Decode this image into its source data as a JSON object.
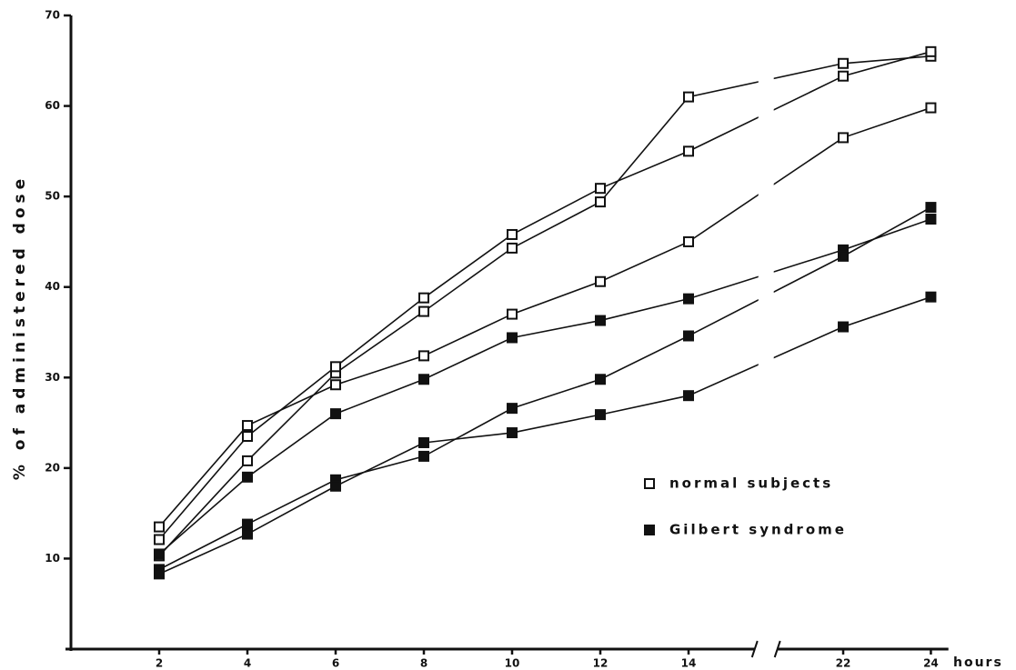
{
  "chart_data": {
    "type": "line",
    "y_label": "% of administered dose",
    "x_label": "hours",
    "xlim": [
      0,
      24.4
    ],
    "x_break": [
      15.5,
      20.5
    ],
    "xticks": [
      2,
      4,
      6,
      8,
      10,
      12,
      14,
      22,
      24
    ],
    "ylim": [
      0,
      70
    ],
    "yticks": [
      10,
      20,
      30,
      40,
      50,
      60,
      70
    ],
    "x": [
      2,
      4,
      6,
      8,
      10,
      12,
      14,
      22,
      24
    ],
    "color": "#111111",
    "legend": {
      "position": "center-right",
      "entries": [
        {
          "name": "normal subjects",
          "marker": "open"
        },
        {
          "name": "Gilbert syndrome",
          "marker": "filled"
        }
      ]
    },
    "series": [
      {
        "group": 0,
        "values": [
          10.3,
          20.8,
          30.5,
          37.3,
          44.3,
          49.4,
          61,
          64.7,
          65.5
        ]
      },
      {
        "group": 0,
        "values": [
          12.1,
          23.5,
          31.2,
          38.8,
          45.8,
          50.9,
          55,
          63.3,
          66
        ]
      },
      {
        "group": 0,
        "values": [
          13.5,
          24.7,
          29.2,
          32.4,
          37,
          40.6,
          45,
          56.5,
          59.8
        ]
      },
      {
        "group": 1,
        "values": [
          10.5,
          19,
          26,
          29.8,
          34.4,
          36.3,
          38.7,
          44.1,
          47.5
        ]
      },
      {
        "group": 1,
        "values": [
          8.8,
          13.8,
          18.7,
          21.3,
          26.6,
          29.8,
          34.6,
          43.4,
          48.8
        ]
      },
      {
        "group": 1,
        "values": [
          8.3,
          12.7,
          18,
          22.8,
          23.9,
          25.9,
          28,
          35.6,
          38.9
        ]
      }
    ]
  }
}
